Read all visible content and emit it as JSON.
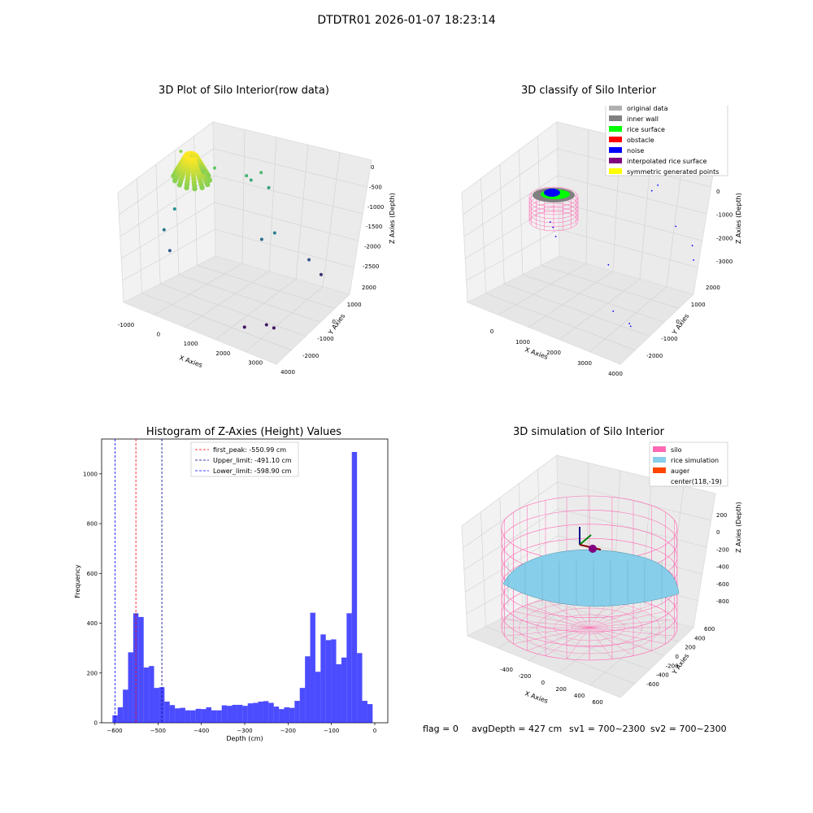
{
  "suptitle": "DTDTR01 2026-01-07 18:23:14",
  "colors": {
    "pink": "#ff69b4",
    "rice": "#87ceeb",
    "auger": "#ff4500",
    "hist": "#0000ff",
    "peak": "#ff0000",
    "limit": "#00008b"
  },
  "chart_data": [
    {
      "type": "scatter",
      "projection": "3d",
      "title": "3D Plot of Silo Interior(row data)",
      "xlabel": "X Axies",
      "ylabel": "Y Axies",
      "zlabel": "Z Axies (Depth)",
      "xticks": [
        "-1000",
        "0",
        "1000",
        "2000",
        "3000",
        "4000"
      ],
      "yticks": [
        "-2000",
        "-1000",
        "0",
        "1000",
        "2000"
      ],
      "zticks": [
        "0",
        "-500",
        "-1000",
        "-1500",
        "-2000",
        "-2500"
      ],
      "xlim": [
        -1100,
        4200
      ],
      "ylim": [
        -2400,
        2200
      ],
      "zlim": [
        -2700,
        100
      ],
      "colormap": "viridis",
      "dense_cluster": {
        "x_range": [
          -600,
          600
        ],
        "y_range": [
          -600,
          600
        ],
        "z_range": [
          -150,
          -600
        ]
      },
      "points": [
        {
          "x": -700,
          "y": 600,
          "z": -400
        },
        {
          "x": 300,
          "y": 900,
          "z": -600
        },
        {
          "x": 900,
          "y": 1800,
          "z": -900
        },
        {
          "x": 1000,
          "y": 1900,
          "z": -1000
        },
        {
          "x": 1300,
          "y": 2000,
          "z": -800
        },
        {
          "x": 1500,
          "y": 2100,
          "z": -1100
        },
        {
          "x": -500,
          "y": -200,
          "z": -1300
        },
        {
          "x": -600,
          "y": -700,
          "z": -1600
        },
        {
          "x": -300,
          "y": -900,
          "z": -1900
        },
        {
          "x": 1900,
          "y": 900,
          "z": -1700
        },
        {
          "x": 3200,
          "y": 1500,
          "z": -2000
        },
        {
          "x": 3500,
          "y": 1700,
          "z": -2300
        },
        {
          "x": 2300,
          "y": 1000,
          "z": -1500
        },
        {
          "x": 2600,
          "y": -1500,
          "z": -2600
        },
        {
          "x": 3200,
          "y": -1200,
          "z": -2500
        },
        {
          "x": 3400,
          "y": -1100,
          "z": -2550
        }
      ]
    },
    {
      "type": "scatter",
      "projection": "3d",
      "title": "3D classify of Silo Interior",
      "xlabel": "X Axies",
      "ylabel": "Y Axies",
      "zlabel": "Z Axies (Depth)",
      "xticks": [
        "0",
        "1000",
        "2000",
        "3000",
        "4000"
      ],
      "yticks": [
        "-2000",
        "-1000",
        "0",
        "1000",
        "2000"
      ],
      "zticks": [
        "0",
        "-1000",
        "-2000",
        "-3000"
      ],
      "legend_loc": "top-right",
      "legend": [
        {
          "label": "original data",
          "color": "#b0b0b0"
        },
        {
          "label": "inner wall",
          "color": "#808080"
        },
        {
          "label": "rice surface",
          "color": "#00ff00"
        },
        {
          "label": "obstacle",
          "color": "#ff0000"
        },
        {
          "label": "noise",
          "color": "#0000ff"
        },
        {
          "label": "interpolated rice surface",
          "color": "#800080"
        },
        {
          "label": "symmetric generated points",
          "color": "#ffff00"
        }
      ],
      "noise_points": [
        {
          "x": 1300,
          "y": 1700,
          "z": -200
        },
        {
          "x": 1800,
          "y": 1900,
          "z": -500
        },
        {
          "x": 2300,
          "y": 2000,
          "z": -700
        },
        {
          "x": 2600,
          "y": 2000,
          "z": -900
        },
        {
          "x": 2500,
          "y": 1800,
          "z": -1000
        },
        {
          "x": 3300,
          "y": 1800,
          "z": -1700
        },
        {
          "x": 3800,
          "y": 1900,
          "z": -2100
        },
        {
          "x": 4000,
          "y": 1600,
          "z": -2300
        },
        {
          "x": 0,
          "y": 0,
          "z": -1900
        },
        {
          "x": 200,
          "y": -200,
          "z": -1900
        },
        {
          "x": 400,
          "y": -400,
          "z": -2000
        },
        {
          "x": 1800,
          "y": 300,
          "z": -2600
        },
        {
          "x": 2600,
          "y": -900,
          "z": -3100
        },
        {
          "x": 3200,
          "y": -1000,
          "z": -3200
        },
        {
          "x": 3300,
          "y": -1100,
          "z": -3200
        }
      ]
    },
    {
      "type": "bar",
      "title": "Histogram of Z-Axies (Height) Values",
      "xlabel": "Depth (cm)",
      "ylabel": "Frequency",
      "xlim": [
        -630,
        30
      ],
      "ylim": [
        0,
        1140
      ],
      "xticks": [
        -600,
        -500,
        -400,
        -300,
        -200,
        -100,
        0
      ],
      "yticks": [
        0,
        200,
        400,
        600,
        800,
        1000
      ],
      "bin_start": -605,
      "bin_width": 12,
      "values": [
        30,
        62,
        133,
        283,
        440,
        425,
        222,
        228,
        140,
        143,
        85,
        71,
        58,
        60,
        50,
        50,
        56,
        55,
        62,
        50,
        50,
        70,
        68,
        72,
        72,
        68,
        78,
        80,
        85,
        87,
        80,
        65,
        55,
        62,
        60,
        88,
        140,
        267,
        442,
        205,
        355,
        332,
        335,
        235,
        262,
        440,
        1088,
        280,
        88,
        75
      ],
      "vlines": [
        {
          "x": -550.99,
          "label": "first_peak: -550.99 cm",
          "color": "#ff0000"
        },
        {
          "x": -491.1,
          "label": "Upper_limit: -491.10 cm",
          "color": "#00008b"
        },
        {
          "x": -598.9,
          "label": "Lower_limit: -598.90 cm",
          "color": "#0000ff"
        }
      ],
      "legend_loc": "top-center"
    },
    {
      "type": "surface",
      "projection": "3d",
      "title": "3D simulation of Silo Interior",
      "xlabel": "X Axies",
      "ylabel": "Y Axies",
      "zlabel": "Z Axies (Depth)",
      "xticks": [
        "-400",
        "-200",
        "0",
        "200",
        "400",
        "600"
      ],
      "yticks": [
        "-600",
        "-400",
        "-200",
        "0",
        "200",
        "400",
        "600"
      ],
      "zticks": [
        "200",
        "0",
        "-200",
        "-400",
        "-600",
        "-800"
      ],
      "legend_loc": "top-right",
      "legend": [
        {
          "label": "silo",
          "color": "#ff69b4"
        },
        {
          "label": "rice simulation",
          "color": "#87ceeb"
        },
        {
          "label": "auger",
          "color": "#ff4500"
        },
        {
          "label": "center(118,-19)",
          "color": ""
        }
      ]
    }
  ],
  "status": {
    "flag": "flag = 0",
    "avg": "avgDepth = 427 cm",
    "sv1": "sv1 = 700~2300",
    "sv2": "sv2 = 700~2300"
  }
}
